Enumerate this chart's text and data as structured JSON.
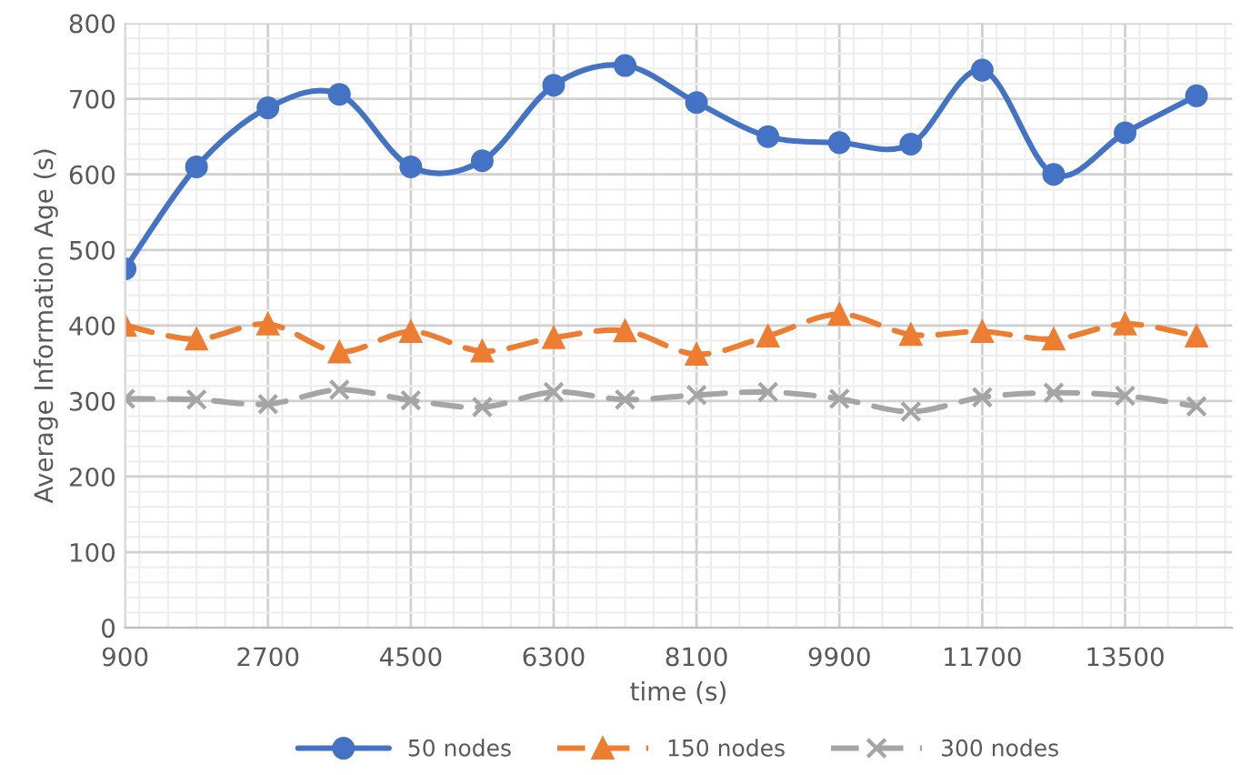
{
  "chart_data": {
    "type": "line",
    "xlabel": "time (s)",
    "ylabel": "Average Information Age (s)",
    "x": [
      900,
      1800,
      2700,
      3600,
      4500,
      5400,
      6300,
      7200,
      8100,
      9000,
      9900,
      10800,
      11700,
      12600,
      13500,
      14400
    ],
    "series": [
      {
        "name": "50 nodes",
        "color": "#4472c4",
        "marker": "circle",
        "line_style": "solid",
        "values": [
          475,
          610,
          688,
          706,
          610,
          618,
          718,
          744,
          695,
          650,
          642,
          640,
          738,
          600,
          655,
          704
        ]
      },
      {
        "name": "150 nodes",
        "color": "#ed7d31",
        "marker": "triangle",
        "line_style": "dashed",
        "values": [
          400,
          382,
          402,
          365,
          392,
          366,
          384,
          393,
          362,
          386,
          415,
          388,
          392,
          382,
          402,
          386
        ]
      },
      {
        "name": "300 nodes",
        "color": "#a5a5a5",
        "marker": "cross",
        "line_style": "dashed",
        "values": [
          303,
          302,
          296,
          315,
          301,
          292,
          312,
          302,
          308,
          312,
          303,
          286,
          305,
          311,
          307,
          293
        ]
      }
    ],
    "xlim": [
      900,
      14850
    ],
    "xticks": [
      900,
      2700,
      4500,
      6300,
      8100,
      9900,
      11700,
      13500
    ],
    "ylim": [
      0,
      800
    ],
    "yticks": [
      0,
      100,
      200,
      300,
      400,
      500,
      600,
      700,
      800
    ],
    "grid": true,
    "legend": "bottom"
  }
}
